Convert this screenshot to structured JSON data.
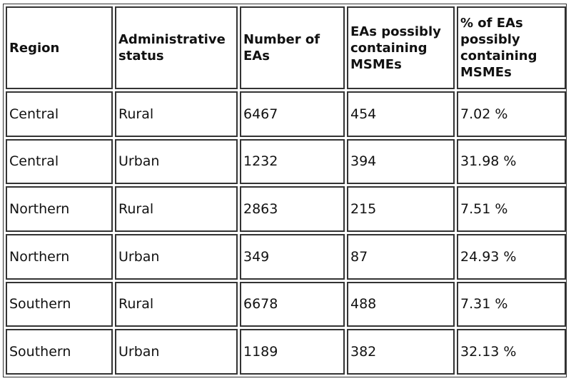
{
  "table": {
    "header": [
      "Region",
      "Administrative status",
      "Number of EAs",
      "EAs possibly containing MSMEs",
      "% of EAs possibly containing MSMEs"
    ],
    "rows": [
      [
        "Central",
        "Rural",
        6467,
        454,
        "7.02 %"
      ],
      [
        "Central",
        "Urban",
        1232,
        394,
        "31.98 %"
      ],
      [
        "Northern",
        "Rural",
        2863,
        215,
        "7.51 %"
      ],
      [
        "Northern",
        "Urban",
        349,
        87,
        "24.93 %"
      ],
      [
        "Southern",
        "Rural",
        6678,
        488,
        "7.31 %"
      ],
      [
        "Southern",
        "Urban",
        1189,
        382,
        "32.13 %"
      ]
    ]
  }
}
